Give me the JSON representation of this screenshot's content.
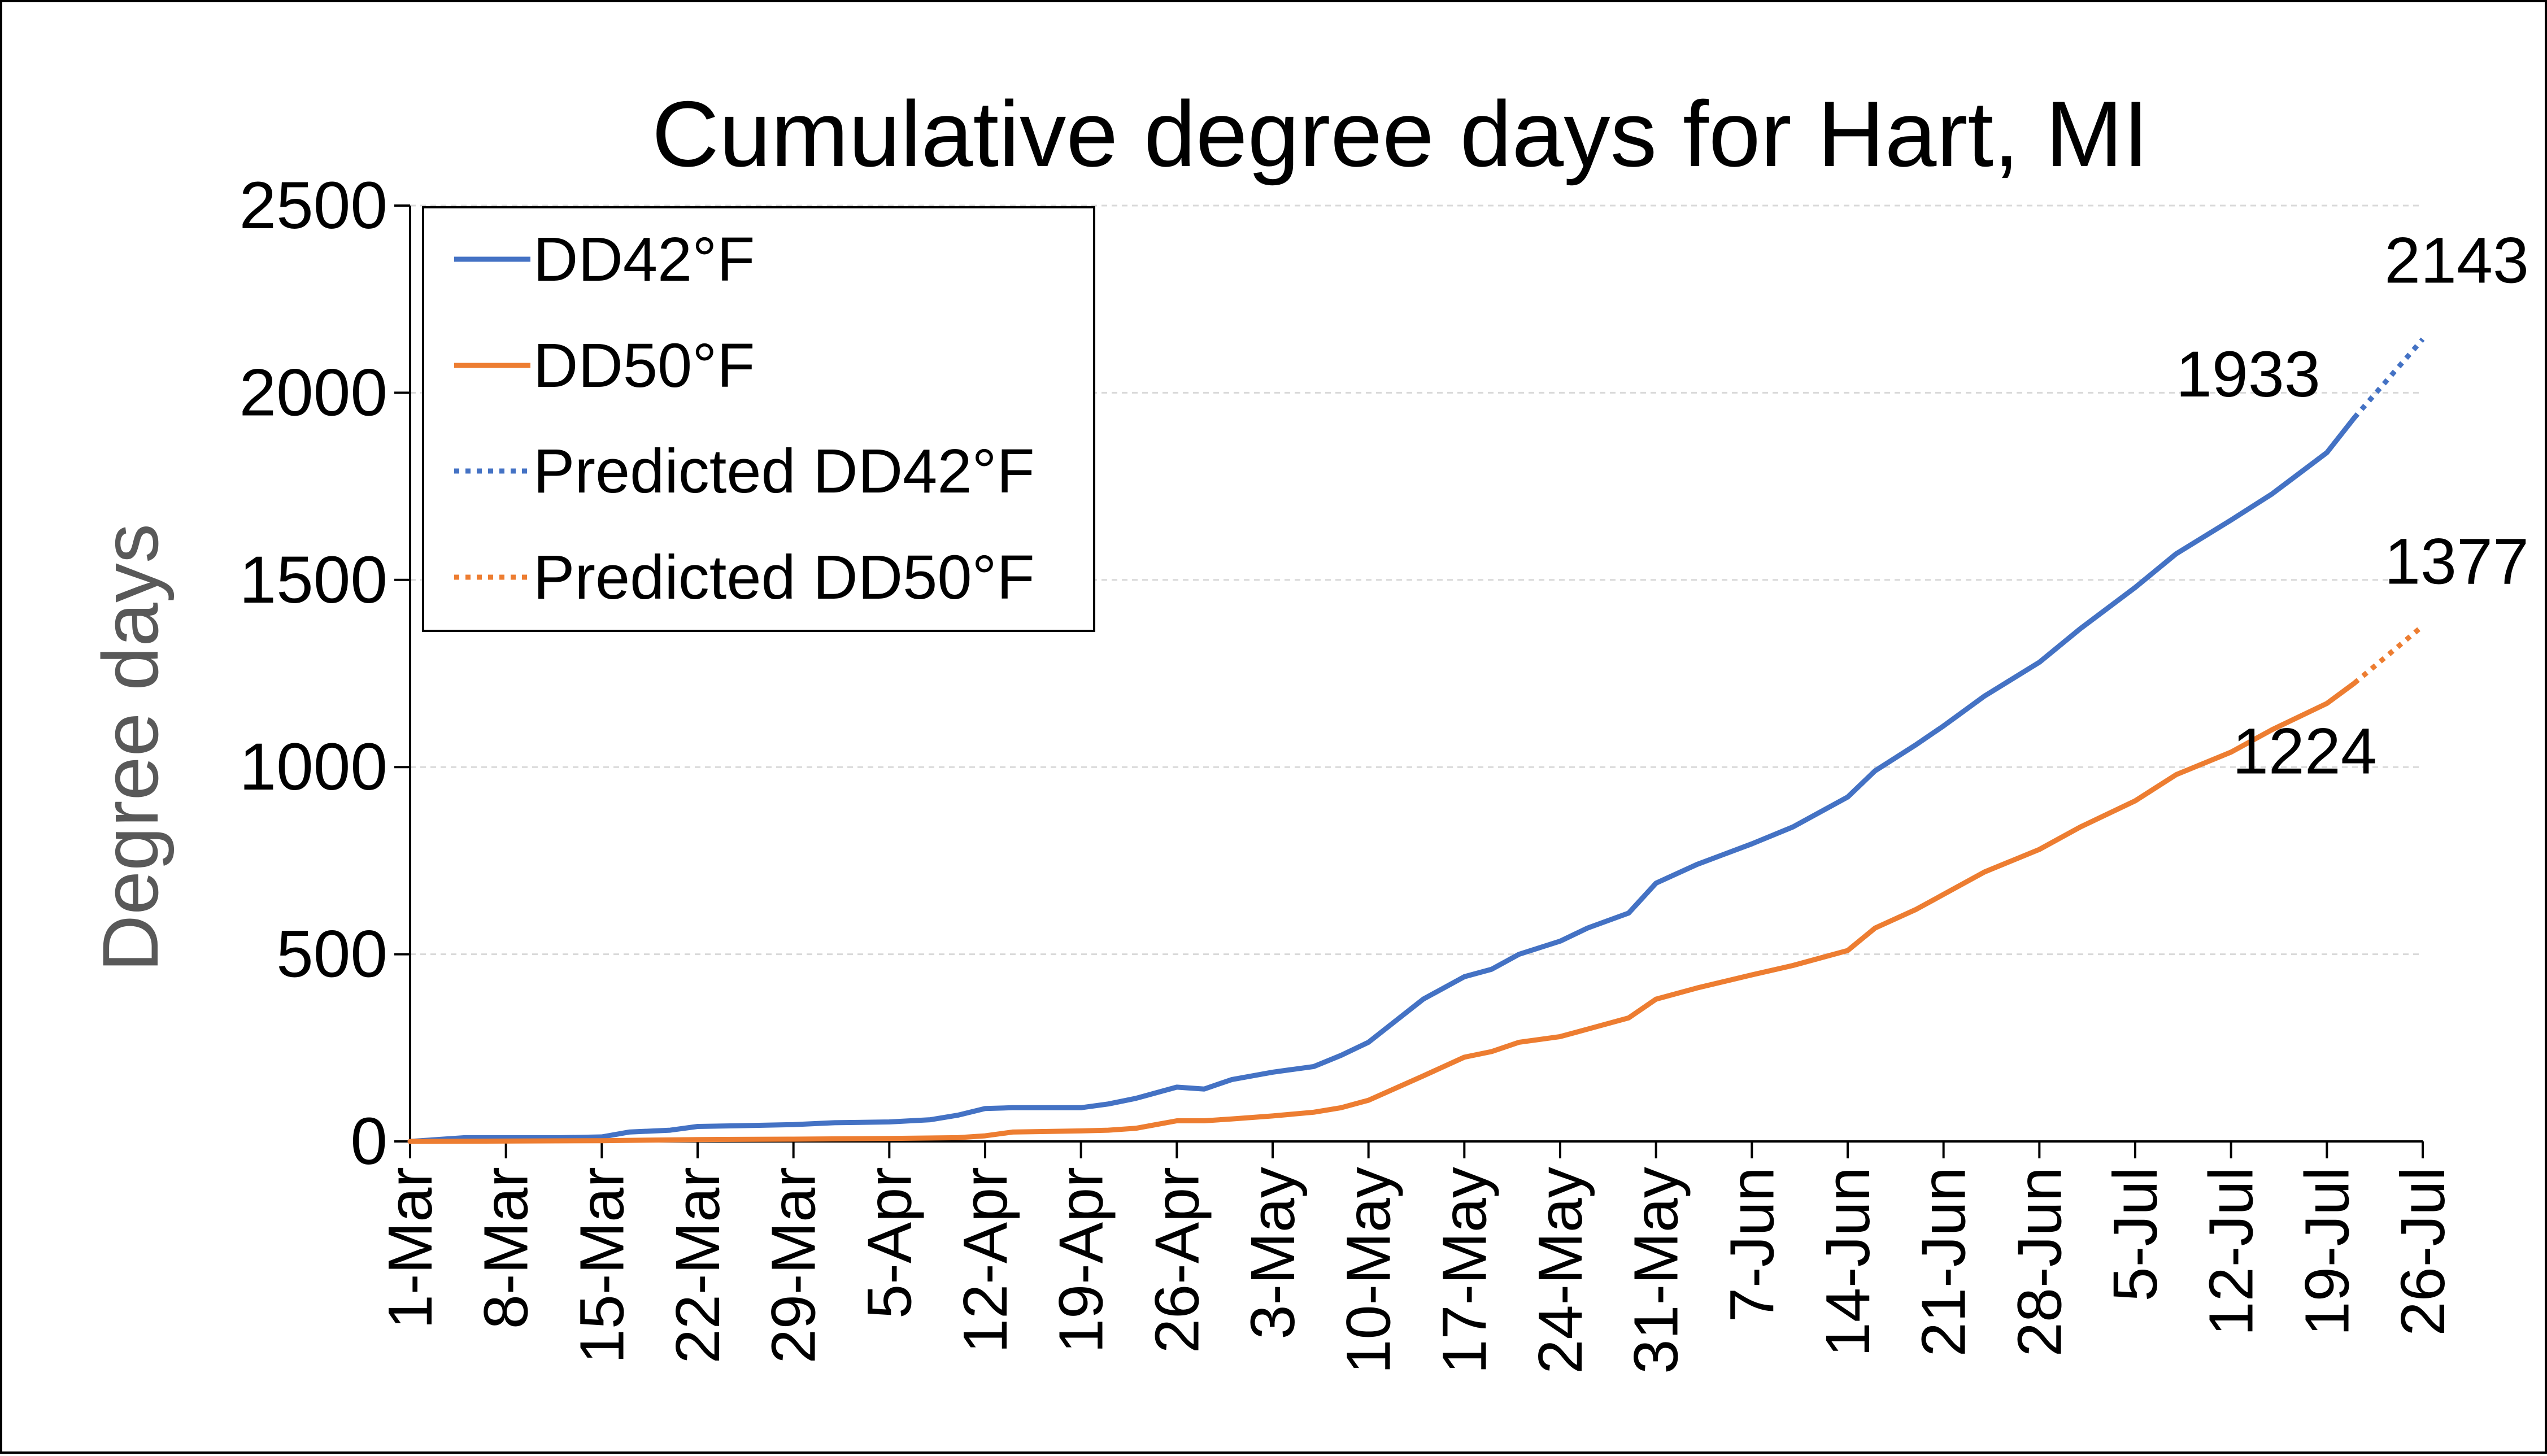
{
  "chart_data": {
    "type": "line",
    "title": "Cumulative degree days for Hart, MI",
    "xlabel": "",
    "ylabel": "Degree days",
    "ylim": [
      0,
      2500
    ],
    "yticks": [
      "0",
      "500",
      "1000",
      "1500",
      "2000",
      "2500"
    ],
    "x_tick_labels": [
      "1-Mar",
      "8-Mar",
      "15-Mar",
      "22-Mar",
      "29-Mar",
      "5-Apr",
      "12-Apr",
      "19-Apr",
      "26-Apr",
      "3-May",
      "10-May",
      "17-May",
      "24-May",
      "31-May",
      "7-Jun",
      "14-Jun",
      "21-Jun",
      "28-Jun",
      "5-Jul",
      "12-Jul",
      "19-Jul",
      "26-Jul"
    ],
    "x_range": [
      "1-Mar",
      "26-Jul"
    ],
    "grid": true,
    "legend_position": "top-left",
    "series": [
      {
        "name": "DD42°F",
        "color": "#4472C4",
        "style": "solid",
        "x": [
          "1-Mar",
          "5-Mar",
          "8-Mar",
          "12-Mar",
          "15-Mar",
          "17-Mar",
          "20-Mar",
          "22-Mar",
          "25-Mar",
          "29-Mar",
          "1-Apr",
          "5-Apr",
          "8-Apr",
          "10-Apr",
          "12-Apr",
          "14-Apr",
          "19-Apr",
          "21-Apr",
          "23-Apr",
          "26-Apr",
          "28-Apr",
          "30-Apr",
          "3-May",
          "6-May",
          "8-May",
          "10-May",
          "14-May",
          "17-May",
          "19-May",
          "21-May",
          "24-May",
          "26-May",
          "29-May",
          "31-May",
          "3-Jun",
          "7-Jun",
          "10-Jun",
          "14-Jun",
          "16-Jun",
          "19-Jun",
          "21-Jun",
          "24-Jun",
          "28-Jun",
          "1-Jul",
          "5-Jul",
          "8-Jul",
          "12-Jul",
          "15-Jul",
          "19-Jul",
          "21-Jul"
        ],
        "y": [
          0,
          10,
          10,
          10,
          12,
          25,
          30,
          40,
          42,
          45,
          50,
          52,
          58,
          70,
          88,
          90,
          90,
          100,
          115,
          145,
          140,
          165,
          185,
          200,
          230,
          265,
          380,
          440,
          460,
          500,
          535,
          570,
          610,
          690,
          740,
          795,
          840,
          920,
          990,
          1060,
          1110,
          1190,
          1280,
          1370,
          1480,
          1570,
          1660,
          1730,
          1840,
          1933
        ]
      },
      {
        "name": "DD50°F",
        "color": "#ED7D31",
        "style": "solid",
        "x": [
          "1-Mar",
          "15-Mar",
          "22-Mar",
          "29-Mar",
          "5-Apr",
          "10-Apr",
          "12-Apr",
          "14-Apr",
          "19-Apr",
          "21-Apr",
          "23-Apr",
          "26-Apr",
          "28-Apr",
          "30-Apr",
          "3-May",
          "6-May",
          "8-May",
          "10-May",
          "14-May",
          "17-May",
          "19-May",
          "21-May",
          "24-May",
          "26-May",
          "29-May",
          "31-May",
          "3-Jun",
          "7-Jun",
          "10-Jun",
          "14-Jun",
          "16-Jun",
          "19-Jun",
          "21-Jun",
          "24-Jun",
          "28-Jun",
          "1-Jul",
          "5-Jul",
          "8-Jul",
          "12-Jul",
          "15-Jul",
          "19-Jul",
          "21-Jul"
        ],
        "y": [
          0,
          2,
          5,
          6,
          8,
          10,
          15,
          25,
          28,
          30,
          35,
          55,
          55,
          60,
          68,
          78,
          90,
          110,
          175,
          225,
          240,
          265,
          280,
          300,
          330,
          380,
          410,
          445,
          470,
          510,
          570,
          620,
          660,
          720,
          780,
          840,
          910,
          980,
          1040,
          1100,
          1170,
          1224
        ]
      },
      {
        "name": "Predicted DD42°F",
        "color": "#4472C4",
        "style": "dotted",
        "x": [
          "21-Jul",
          "26-Jul"
        ],
        "y": [
          1933,
          2143
        ]
      },
      {
        "name": "Predicted DD50°F",
        "color": "#ED7D31",
        "style": "dotted",
        "x": [
          "21-Jul",
          "26-Jul"
        ],
        "y": [
          1224,
          1377
        ]
      }
    ],
    "data_labels": [
      {
        "series": "DD42°F",
        "x": "21-Jul",
        "y": 1933,
        "text": "1933"
      },
      {
        "series": "Predicted DD42°F",
        "x": "26-Jul",
        "y": 2143,
        "text": "2143"
      },
      {
        "series": "DD50°F",
        "x": "21-Jul",
        "y": 1224,
        "text": "1224"
      },
      {
        "series": "Predicted DD50°F",
        "x": "26-Jul",
        "y": 1377,
        "text": "1377"
      }
    ]
  }
}
